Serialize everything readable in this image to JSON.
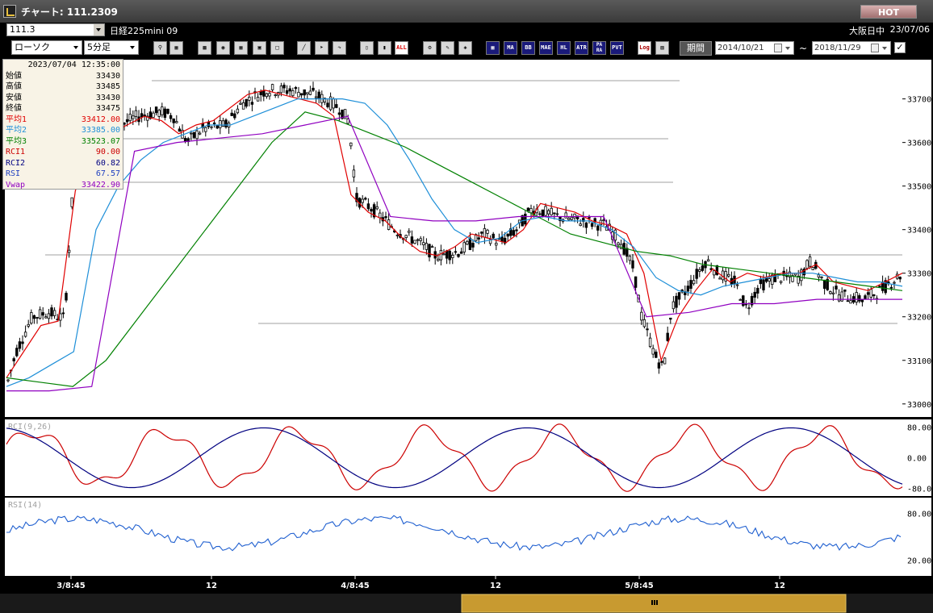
{
  "window": {
    "title": "チャート: 111.2309",
    "hot_label": "HOT"
  },
  "instrument": {
    "code": "111.3",
    "name": "日経225mini 09",
    "market": "大阪日中",
    "date": "23/07/06"
  },
  "toolbar": {
    "chart_type": "ローソク",
    "interval": "5分足",
    "ind_labels": [
      "MA",
      "BB",
      "MAE",
      "HL",
      "ATR",
      "PA\nRA",
      "PVT"
    ],
    "all_label": "ALL",
    "log_label": "Log",
    "period_label": "期間",
    "date_from": "2014/10/21",
    "date_to": "2018/11/29",
    "tilde": "~"
  },
  "ohlc_panel": {
    "datetime": "2023/07/04  12:35:00",
    "rows": [
      {
        "label": "始値",
        "value": "33430",
        "color": "#000000"
      },
      {
        "label": "高値",
        "value": "33485",
        "color": "#000000"
      },
      {
        "label": "安値",
        "value": "33430",
        "color": "#000000"
      },
      {
        "label": "終値",
        "value": "33475",
        "color": "#000000"
      },
      {
        "label": "平均1",
        "value": "33412.00",
        "color": "#e00000"
      },
      {
        "label": "平均2",
        "value": "33385.00",
        "color": "#1e8fd8"
      },
      {
        "label": "平均3",
        "value": "33523.07",
        "color": "#008000"
      },
      {
        "label": "RCI1",
        "value": "90.00",
        "color": "#cc0000"
      },
      {
        "label": "RCI2",
        "value": "60.82",
        "color": "#000080"
      },
      {
        "label": "RSI",
        "value": "67.57",
        "color": "#2040c0"
      },
      {
        "label": "Vwap",
        "value": "33422.90",
        "color": "#9000c0"
      }
    ]
  },
  "chart_data": [
    {
      "type": "candlestick",
      "panel": "price",
      "y_ticks": [
        "33700",
        "33600",
        "33500",
        "33400",
        "33300",
        "33200",
        "33100",
        "33000"
      ],
      "ylim": [
        33000,
        33750
      ],
      "x_ticks": [
        "3/8:45",
        "12",
        "4/8:45",
        "12",
        "5/8:45",
        "12"
      ],
      "series": [
        {
          "name": "平均1",
          "color": "#e00000",
          "values": [
            33060,
            33120,
            33180,
            33190,
            33490,
            33560,
            33620,
            33640,
            33660,
            33650,
            33620,
            33640,
            33650,
            33680,
            33710,
            33720,
            33710,
            33700,
            33690,
            33660,
            33480,
            33440,
            33420,
            33380,
            33350,
            33340,
            33360,
            33390,
            33380,
            33370,
            33400,
            33460,
            33450,
            33440,
            33420,
            33410,
            33390,
            33300,
            33100,
            33200,
            33260,
            33310,
            33280,
            33300,
            33290,
            33300,
            33300,
            33320,
            33280,
            33270,
            33260,
            33280,
            33300
          ]
        },
        {
          "name": "平均2",
          "color": "#1e8fd8",
          "values": [
            33040,
            33060,
            33090,
            33120,
            33400,
            33500,
            33560,
            33600,
            33620,
            33640,
            33640,
            33660,
            33680,
            33700,
            33700,
            33700,
            33690,
            33640,
            33560,
            33470,
            33400,
            33370,
            33380,
            33420,
            33430,
            33420,
            33420,
            33400,
            33360,
            33290,
            33260,
            33250,
            33270,
            33280,
            33290,
            33300,
            33300,
            33290,
            33280,
            33280,
            33270
          ]
        },
        {
          "name": "平均3",
          "color": "#008000",
          "values": [
            33060,
            33050,
            33040,
            33100,
            33200,
            33300,
            33400,
            33500,
            33600,
            33670,
            33650,
            33620,
            33590,
            33550,
            33510,
            33470,
            33430,
            33390,
            33370,
            33350,
            33340,
            33320,
            33310,
            33300,
            33290,
            33280,
            33270,
            33260
          ]
        },
        {
          "name": "Vwap",
          "color": "#9000c0",
          "values": [
            33030,
            33030,
            33040,
            33580,
            33600,
            33610,
            33620,
            33640,
            33660,
            33430,
            33420,
            33420,
            33430,
            33430,
            33430,
            33200,
            33210,
            33230,
            33230,
            33240,
            33240,
            33240
          ]
        }
      ]
    },
    {
      "type": "line",
      "panel": "RCI",
      "title": "RCI(9,26)",
      "y_ticks": [
        "80.00",
        "0.00",
        "-80.00"
      ],
      "ylim": [
        -100,
        100
      ],
      "series": [
        {
          "name": "RCI1",
          "color": "#cc0000"
        },
        {
          "name": "RCI2",
          "color": "#000080"
        }
      ]
    },
    {
      "type": "line",
      "panel": "RSI",
      "title": "RSI(14)",
      "y_ticks": [
        "80.00",
        "20.00"
      ],
      "ylim": [
        0,
        100
      ],
      "series": [
        {
          "name": "RSI",
          "color": "#2060d0"
        }
      ]
    }
  ]
}
